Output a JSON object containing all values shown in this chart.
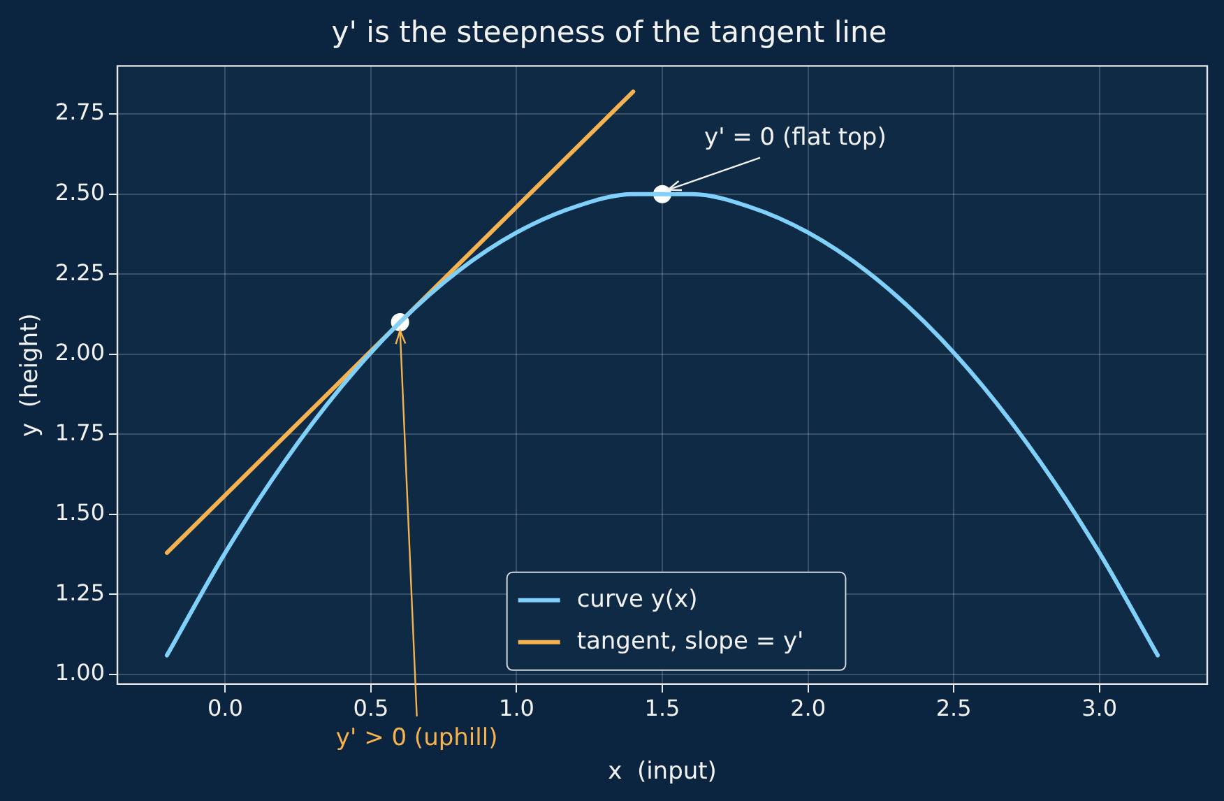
{
  "chart_data": {
    "type": "line",
    "title": "y' is the steepness of the tangent line",
    "xlabel": "x  (input)",
    "ylabel": "y  (height)",
    "xlim": [
      -0.37,
      3.37
    ],
    "xticks": [
      {
        "value": 0,
        "label": "0.0"
      },
      {
        "value": 0.5,
        "label": "0.5"
      },
      {
        "value": 1,
        "label": "1.0"
      },
      {
        "value": 1.5,
        "label": "1.5"
      },
      {
        "value": 2,
        "label": "2.0"
      },
      {
        "value": 2.5,
        "label": "2.5"
      },
      {
        "value": 3,
        "label": "3.0"
      }
    ],
    "ylim": [
      0.97,
      2.9
    ],
    "yticks": [
      {
        "value": 1,
        "label": "1.00"
      },
      {
        "value": 1.25,
        "label": "1.25"
      },
      {
        "value": 1.5,
        "label": "1.50"
      },
      {
        "value": 1.75,
        "label": "1.75"
      },
      {
        "value": 2,
        "label": "2.00"
      },
      {
        "value": 2.25,
        "label": "2.25"
      },
      {
        "value": 2.5,
        "label": "2.50"
      },
      {
        "value": 2.75,
        "label": "2.75"
      }
    ],
    "grid": true,
    "legend": "bottom",
    "marker": "none",
    "line_style": "solid",
    "series": [
      {
        "name": "curve y(x)",
        "color": "#7fd0fb",
        "x": [
          -0.2,
          0,
          0.2,
          0.4,
          0.6,
          0.8,
          1,
          1.2,
          1.4,
          1.5,
          1.6,
          1.8,
          2,
          2.2,
          2.4,
          2.6,
          2.8,
          3,
          3.2
        ],
        "values": [
          1.06,
          1.38,
          1.66,
          1.9,
          2.1,
          2.26,
          2.38,
          2.46,
          2.5,
          2.5,
          2.5,
          2.46,
          2.38,
          2.26,
          2.1,
          1.9,
          1.66,
          1.38,
          1.06
        ]
      },
      {
        "name": "tangent, slope = y'",
        "color": "#f5b24e",
        "x": [
          -0.2,
          1.4
        ],
        "values": [
          1.38,
          2.82
        ]
      },
      {
        "type": "scatter",
        "marker": "circle",
        "color": "#ffffff",
        "x": [
          0.6,
          1.5
        ],
        "values": [
          2.1,
          2.5
        ]
      }
    ],
    "annotations": [
      {
        "text": "y' = 0 (flat top)",
        "x": 1.5,
        "y": 2.5
      },
      {
        "text": "y' > 0 (uphill)",
        "x": 0.6,
        "y": 2.1
      }
    ]
  }
}
